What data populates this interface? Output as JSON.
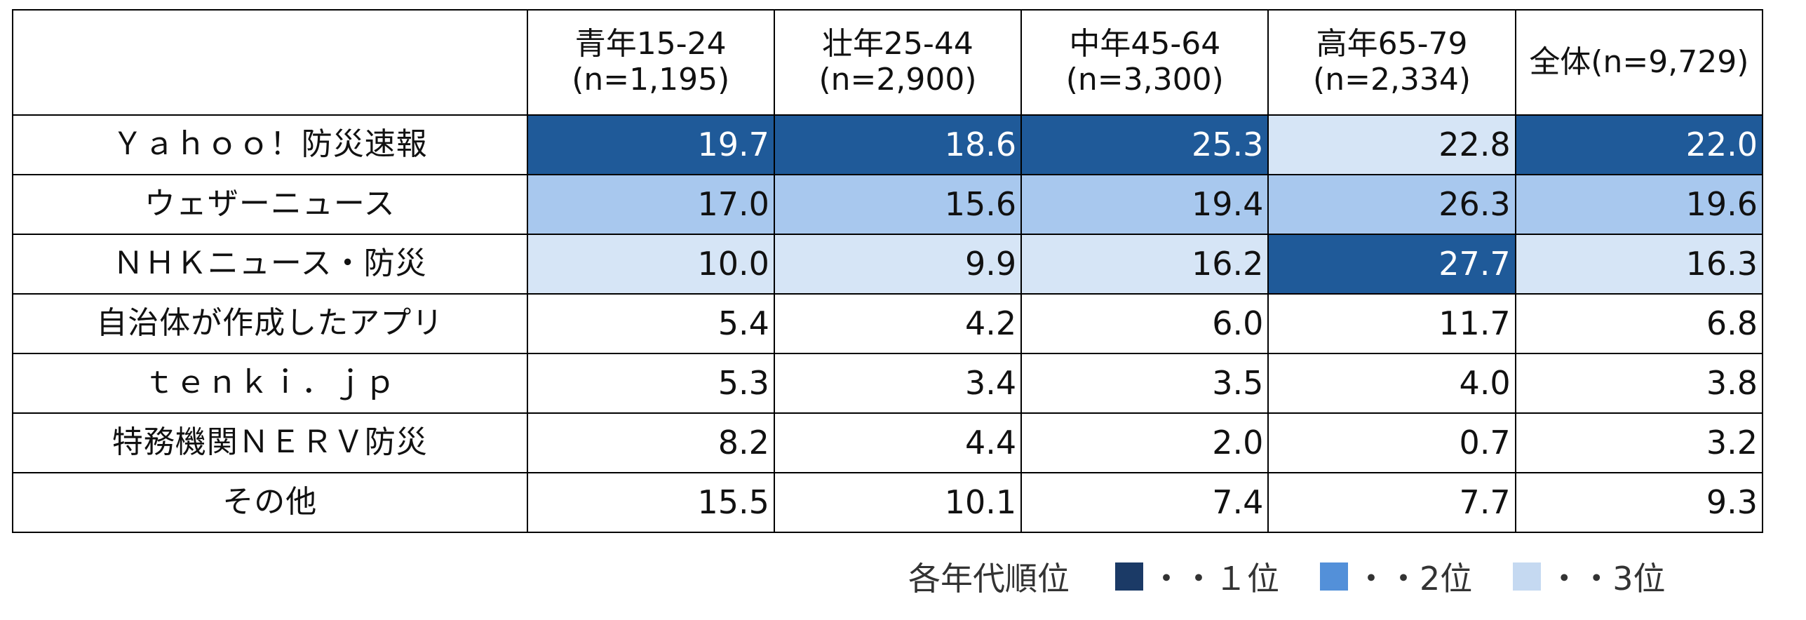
{
  "chart_data": {
    "type": "table",
    "columns": [
      {
        "name": "青年15-24",
        "n": "(n=1,195)"
      },
      {
        "name": "壮年25-44",
        "n": "(n=2,900)"
      },
      {
        "name": "中年45-64",
        "n": "(n=3,300)"
      },
      {
        "name": "高年65-79",
        "n": "(n=2,334)"
      },
      {
        "name": "全体(n=9,729)",
        "n": ""
      }
    ],
    "rows": [
      {
        "label": "Ｙａｈｏｏ！防災速報",
        "values": [
          "19.7",
          "18.6",
          "25.3",
          "22.8",
          "22.0"
        ],
        "ranks": [
          1,
          1,
          1,
          3,
          1
        ]
      },
      {
        "label": "ウェザーニュース",
        "values": [
          "17.0",
          "15.6",
          "19.4",
          "26.3",
          "19.6"
        ],
        "ranks": [
          2,
          2,
          2,
          2,
          2
        ]
      },
      {
        "label": "ＮＨＫニュース・防災",
        "values": [
          "10.0",
          "9.9",
          "16.2",
          "27.7",
          "16.3"
        ],
        "ranks": [
          3,
          3,
          3,
          1,
          3
        ]
      },
      {
        "label": "自治体が作成したアプリ",
        "values": [
          "5.4",
          "4.2",
          "6.0",
          "11.7",
          "6.8"
        ],
        "ranks": [
          0,
          0,
          0,
          0,
          0
        ]
      },
      {
        "label": "ｔｅｎｋｉ．ｊｐ",
        "values": [
          "5.3",
          "3.4",
          "3.5",
          "4.0",
          "3.8"
        ],
        "ranks": [
          0,
          0,
          0,
          0,
          0
        ]
      },
      {
        "label": "特務機関ＮＥＲＶ防災",
        "values": [
          "8.2",
          "4.4",
          "2.0",
          "0.7",
          "3.2"
        ],
        "ranks": [
          0,
          0,
          0,
          0,
          0
        ]
      },
      {
        "label": "その他",
        "values": [
          "15.5",
          "10.1",
          "7.4",
          "7.7",
          "9.3"
        ],
        "ranks": [
          0,
          0,
          0,
          0,
          0
        ]
      }
    ],
    "legend": {
      "title": "各年代順位",
      "items": [
        {
          "swatch_color": "#1b3a66",
          "label": "・・１位"
        },
        {
          "swatch_color": "#5390d9",
          "label": "・・2位"
        },
        {
          "swatch_color": "#c5d9f1",
          "label": "・・3位"
        }
      ]
    }
  },
  "colors": {
    "rank1_cell": "#1f5a99",
    "rank2_cell": "#a8c8ee",
    "rank3_cell": "#d6e5f6",
    "rank1_text": "#ffffff",
    "default_text": "#111111"
  }
}
